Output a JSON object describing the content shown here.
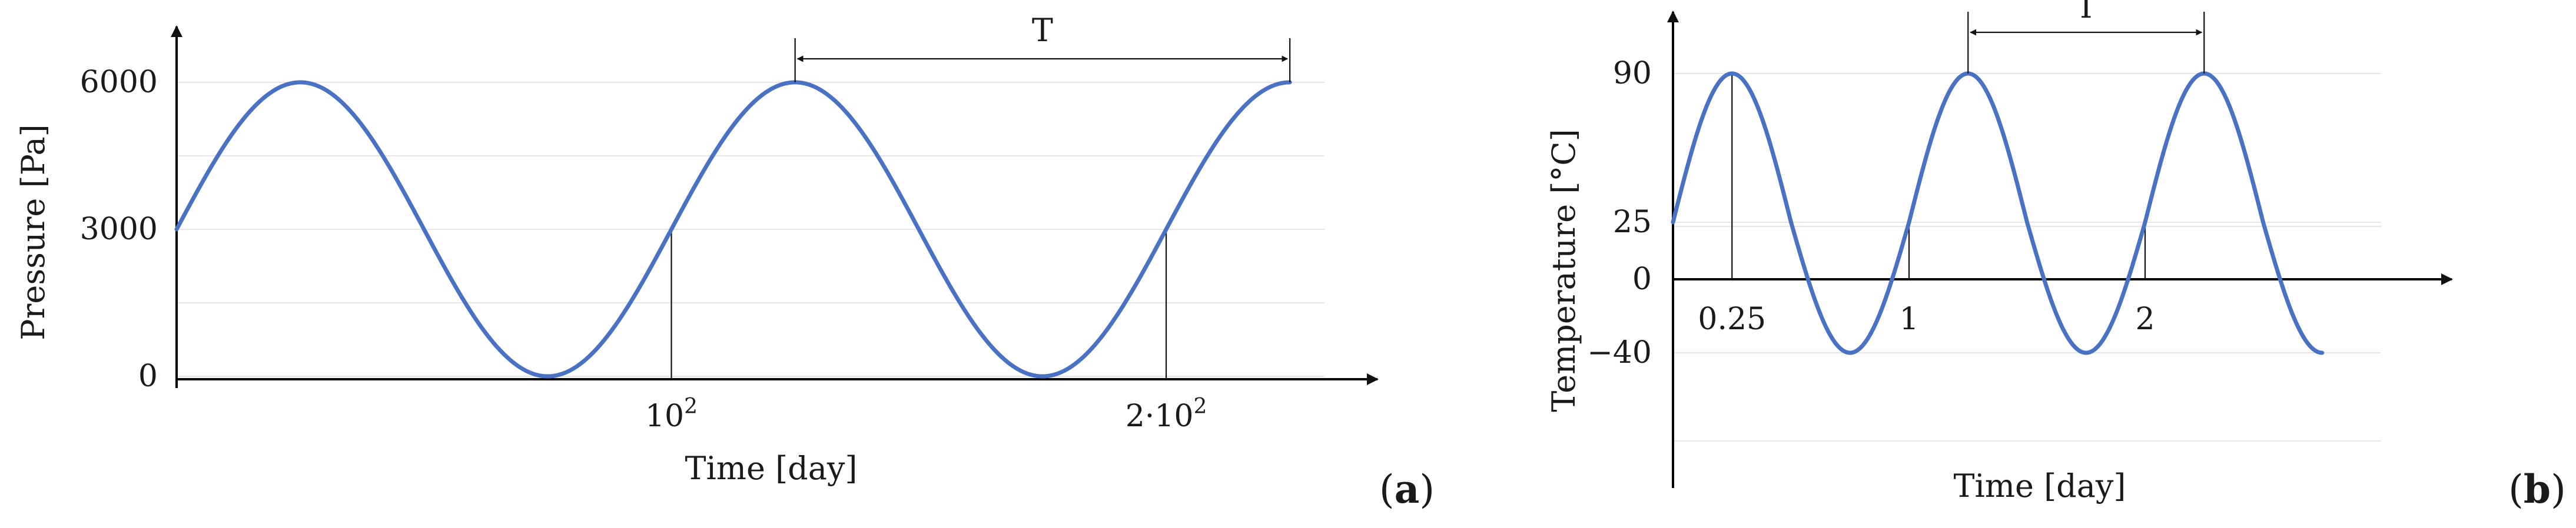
{
  "chart_data": [
    {
      "type": "line",
      "panel_label": "a",
      "xlabel": "Time [day]",
      "ylabel": "Pressure [Pa]",
      "x_ticks": [
        {
          "value": 100,
          "label_base": "10",
          "label_sup": "2"
        },
        {
          "value": 200,
          "label_base": "2·10",
          "label_sup": "2"
        }
      ],
      "y_ticks": [
        {
          "value": 0,
          "label": "0"
        },
        {
          "value": 3000,
          "label": "3000"
        },
        {
          "value": 6000,
          "label": "6000"
        }
      ],
      "xlim": [
        0,
        232
      ],
      "ylim": [
        0,
        6000
      ],
      "grid": "horizontal",
      "series": [
        {
          "function": "3000 + 3000*sin(2*pi*t/100)",
          "x_start": 0,
          "x_end": 225,
          "color": "#4a72c4"
        }
      ],
      "guide_x": [
        100,
        200
      ],
      "period_annotation": {
        "label": "T",
        "x_start": 125,
        "x_end": 225
      }
    },
    {
      "type": "line",
      "panel_label": "b",
      "xlabel": "Time [day]",
      "ylabel": "Temperature [°C]",
      "x_ticks": [
        {
          "value": 0.25,
          "label": "0.25"
        },
        {
          "value": 1,
          "label": "1"
        },
        {
          "value": 2,
          "label": "2"
        }
      ],
      "y_ticks": [
        {
          "value": -40,
          "label": "−40"
        },
        {
          "value": 0,
          "label": "0"
        },
        {
          "value": 25,
          "label": "25"
        },
        {
          "value": 90,
          "label": "90"
        }
      ],
      "xlim": [
        0,
        3.0
      ],
      "ylim": [
        -40,
        90
      ],
      "grid": "horizontal",
      "series": [
        {
          "function": "25 + 65*sin(2*pi*t)",
          "x_start": 0,
          "x_end": 2.75,
          "color": "#4a72c4"
        }
      ],
      "guide_x": [
        0.25,
        1,
        2
      ],
      "period_annotation": {
        "label": "T",
        "x_start": 1.25,
        "x_end": 2.25
      }
    }
  ]
}
